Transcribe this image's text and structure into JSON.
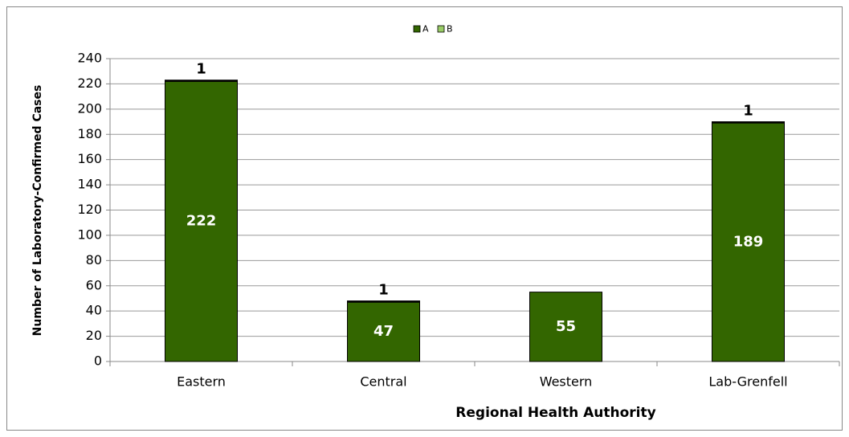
{
  "chart_data": {
    "type": "stacked-bar",
    "x_label": "Regional Health Authority",
    "y_label": "Number of Laboratory-Confirmed Cases",
    "categories": [
      "Eastern",
      "Central",
      "Western",
      "Lab-Grenfell"
    ],
    "series": [
      {
        "name": "A",
        "color": "#336600",
        "values": [
          222,
          47,
          55,
          189
        ]
      },
      {
        "name": "B",
        "color": "#99cc66",
        "values": [
          1,
          1,
          null,
          1
        ]
      }
    ],
    "ylim": [
      0,
      240
    ],
    "yticks": [
      0,
      20,
      40,
      60,
      80,
      100,
      120,
      140,
      160,
      180,
      200,
      220,
      240
    ],
    "grid": true,
    "legend": "top"
  }
}
